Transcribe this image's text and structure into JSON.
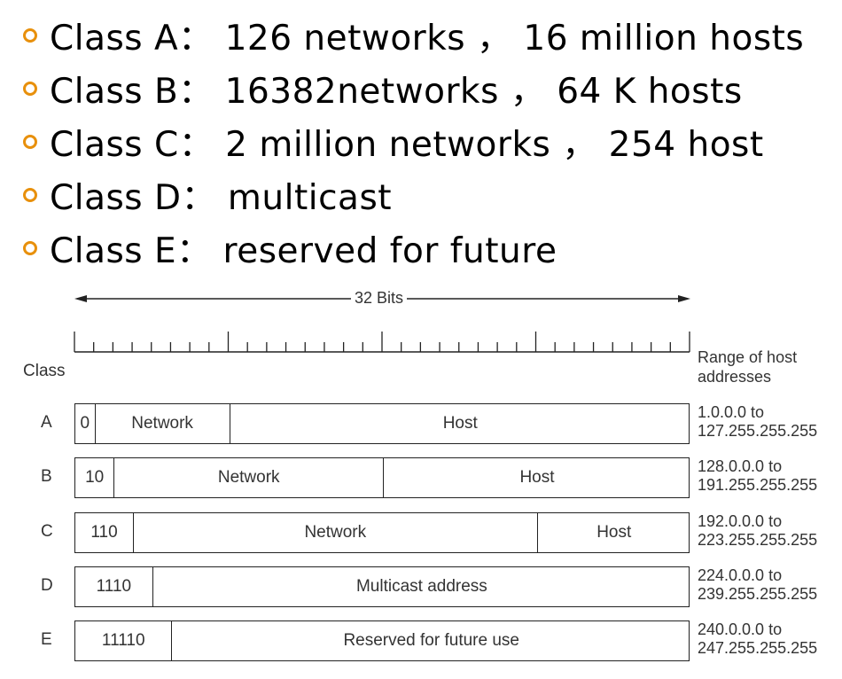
{
  "bullets": [
    {
      "text": "Class A： 126 networks ， 16 million hosts"
    },
    {
      "text": "Class B： 16382networks ， 64 K hosts"
    },
    {
      "text": "Class C： 2 million networks ， 254 host"
    },
    {
      "text": "Class D： multicast"
    },
    {
      "text": "Class E： reserved for future"
    }
  ],
  "diagram": {
    "bits_label": "32 Bits",
    "class_header": "Class",
    "range_header_1": "Range of host",
    "range_header_2": "addresses",
    "total_bits": 32,
    "rows": [
      {
        "class": "A",
        "range_start": "1.0.0.0 to",
        "range_end": "127.255.255.255",
        "fields": [
          {
            "label": "0",
            "bits": 1
          },
          {
            "label": "Network",
            "bits": 7
          },
          {
            "label": "Host",
            "bits": 24
          }
        ]
      },
      {
        "class": "B",
        "range_start": "128.0.0.0 to",
        "range_end": "191.255.255.255",
        "fields": [
          {
            "label": "10",
            "bits": 2
          },
          {
            "label": "Network",
            "bits": 14
          },
          {
            "label": "Host",
            "bits": 16
          }
        ]
      },
      {
        "class": "C",
        "range_start": "192.0.0.0 to",
        "range_end": "223.255.255.255",
        "fields": [
          {
            "label": "110",
            "bits": 3
          },
          {
            "label": "Network",
            "bits": 21
          },
          {
            "label": "Host",
            "bits": 8
          }
        ]
      },
      {
        "class": "D",
        "range_start": "224.0.0.0 to",
        "range_end": "239.255.255.255",
        "fields": [
          {
            "label": "1110",
            "bits": 4
          },
          {
            "label": "Multicast address",
            "bits": 28
          }
        ]
      },
      {
        "class": "E",
        "range_start": "240.0.0.0 to",
        "range_end": "247.255.255.255",
        "fields": [
          {
            "label": "11110",
            "bits": 5
          },
          {
            "label": "Reserved for future use",
            "bits": 27
          }
        ]
      }
    ]
  },
  "colors": {
    "bullet": "#e8900c"
  }
}
